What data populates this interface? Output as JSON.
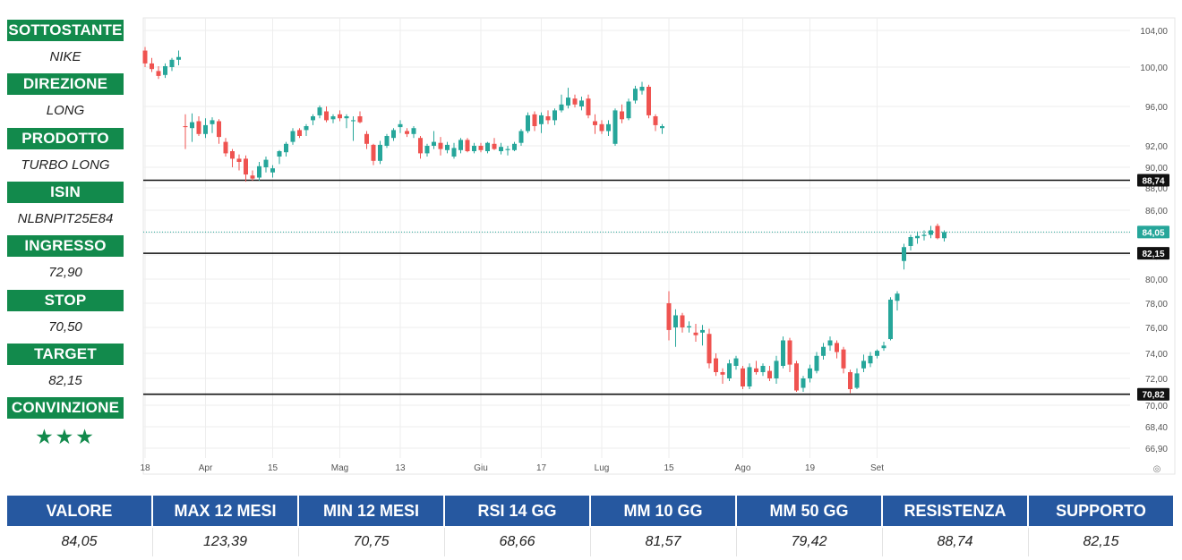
{
  "left_panel": {
    "items": [
      {
        "label": "SOTTOSTANTE",
        "value": "NIKE"
      },
      {
        "label": "DIREZIONE",
        "value": "LONG"
      },
      {
        "label": "PRODOTTO",
        "value": "TURBO LONG"
      },
      {
        "label": "ISIN",
        "value": "NLBNPIT25E84"
      },
      {
        "label": "INGRESSO",
        "value": "72,90"
      },
      {
        "label": "STOP",
        "value": "70,50"
      },
      {
        "label": "TARGET",
        "value": "82,15"
      },
      {
        "label": "CONVINZIONE",
        "value": "★★★"
      }
    ]
  },
  "stats": {
    "headers": [
      "VALORE",
      "MAX 12 MESI",
      "MIN 12 MESI",
      "RSI 14 GG",
      "MM 10 GG",
      "MM 50 GG",
      "RESISTENZA",
      "SUPPORTO"
    ],
    "values": [
      "84,05",
      "123,39",
      "70,75",
      "68,66",
      "81,57",
      "79,42",
      "88,74",
      "82,15"
    ]
  },
  "colors": {
    "up": "#26a69a",
    "down": "#ef5350",
    "green_label": "#128a4c",
    "blue_header": "#2658a0",
    "grid": "#eeeeee"
  },
  "chart_data": {
    "type": "candlestick",
    "y_axis_ticks": [
      "104,00",
      "100,00",
      "96,00",
      "92,00",
      "90,00",
      "88,00",
      "86,00",
      "84,00",
      "82,00",
      "80,00",
      "78,00",
      "76,00",
      "74,00",
      "72,00",
      "70,00",
      "68,40",
      "66,90"
    ],
    "y_axis_tick_values": [
      104,
      100,
      96,
      92,
      90,
      88,
      86,
      84,
      82,
      80,
      78,
      76,
      74,
      72,
      70,
      68.4,
      66.9
    ],
    "x_axis_labels": [
      "18",
      "Apr",
      "15",
      "Mag",
      "13",
      "Giu",
      "17",
      "Lug",
      "15",
      "Ago",
      "19",
      "Set"
    ],
    "x_axis_label_index": [
      0,
      9,
      19,
      29,
      38,
      50,
      59,
      68,
      78,
      89,
      99,
      109
    ],
    "horizontal_levels": [
      {
        "value": 88.74,
        "label": "88,74",
        "style": "solid"
      },
      {
        "value": 82.15,
        "label": "82,15",
        "style": "solid"
      },
      {
        "value": 70.82,
        "label": "70,82",
        "style": "solid"
      }
    ],
    "last_price": {
      "value": 84.05,
      "label": "84,05"
    },
    "candles": [
      [
        101.8,
        102.2,
        100.0,
        100.4
      ],
      [
        100.4,
        101.0,
        99.5,
        99.8
      ],
      [
        99.6,
        100.1,
        98.8,
        99.1
      ],
      [
        99.2,
        100.4,
        98.9,
        100.1
      ],
      [
        100.0,
        101.0,
        99.6,
        100.8
      ],
      [
        100.8,
        101.8,
        100.2,
        101.1
      ],
      [
        94.0,
        95.2,
        91.7,
        93.9
      ],
      [
        93.8,
        95.3,
        92.4,
        94.4
      ],
      [
        94.5,
        95.0,
        93.0,
        93.2
      ],
      [
        93.2,
        94.8,
        92.8,
        94.1
      ],
      [
        94.2,
        94.9,
        93.3,
        94.6
      ],
      [
        94.5,
        94.7,
        92.2,
        92.9
      ],
      [
        92.4,
        92.8,
        91.0,
        91.3
      ],
      [
        91.5,
        91.7,
        90.0,
        90.8
      ],
      [
        90.8,
        91.2,
        89.7,
        90.5
      ],
      [
        90.8,
        91.1,
        88.6,
        89.3
      ],
      [
        89.2,
        89.7,
        88.7,
        88.9
      ],
      [
        89.0,
        90.5,
        88.7,
        90.1
      ],
      [
        90.0,
        91.0,
        89.5,
        90.7
      ],
      [
        89.5,
        90.2,
        89.0,
        89.9
      ],
      [
        91.0,
        91.6,
        90.3,
        91.5
      ],
      [
        91.4,
        92.4,
        91.0,
        92.2
      ],
      [
        92.4,
        93.8,
        92.1,
        93.5
      ],
      [
        93.6,
        93.8,
        92.8,
        93.0
      ],
      [
        93.6,
        94.2,
        93.0,
        94.0
      ],
      [
        94.6,
        95.2,
        94.1,
        95.0
      ],
      [
        95.1,
        96.1,
        94.8,
        95.9
      ],
      [
        95.5,
        96.0,
        94.4,
        94.6
      ],
      [
        94.7,
        95.2,
        94.3,
        95.0
      ],
      [
        95.2,
        95.6,
        94.5,
        94.8
      ],
      [
        94.8,
        95.2,
        93.8,
        95.0
      ],
      [
        94.5,
        95.0,
        92.5,
        94.6
      ],
      [
        95.0,
        95.5,
        94.3,
        94.4
      ],
      [
        93.2,
        93.5,
        91.7,
        92.2
      ],
      [
        92.1,
        92.2,
        90.2,
        90.6
      ],
      [
        90.6,
        92.5,
        90.3,
        92.1
      ],
      [
        92.0,
        93.2,
        91.8,
        93.0
      ],
      [
        92.8,
        93.8,
        92.5,
        93.6
      ],
      [
        93.9,
        94.6,
        93.3,
        94.2
      ],
      [
        93.5,
        93.8,
        92.9,
        93.2
      ],
      [
        93.2,
        94.0,
        92.8,
        93.8
      ],
      [
        92.8,
        93.0,
        90.8,
        91.3
      ],
      [
        91.3,
        92.2,
        91.0,
        92.0
      ],
      [
        92.0,
        93.5,
        91.7,
        92.4
      ],
      [
        92.3,
        92.9,
        91.1,
        91.7
      ],
      [
        91.6,
        92.4,
        91.3,
        92.1
      ],
      [
        91.0,
        92.3,
        90.8,
        91.8
      ],
      [
        91.6,
        92.8,
        91.3,
        92.6
      ],
      [
        92.6,
        92.8,
        91.4,
        91.5
      ],
      [
        91.5,
        92.3,
        91.3,
        92.0
      ],
      [
        92.0,
        92.3,
        91.4,
        91.6
      ],
      [
        91.5,
        92.4,
        91.3,
        92.3
      ],
      [
        92.2,
        92.8,
        91.6,
        91.7
      ],
      [
        91.5,
        92.3,
        91.2,
        91.9
      ],
      [
        91.6,
        92.0,
        91.1,
        91.7
      ],
      [
        91.6,
        92.4,
        91.5,
        92.2
      ],
      [
        92.3,
        93.7,
        92.0,
        93.5
      ],
      [
        93.5,
        95.4,
        93.3,
        95.1
      ],
      [
        95.2,
        95.5,
        93.5,
        94.0
      ],
      [
        94.2,
        95.4,
        93.3,
        95.1
      ],
      [
        95.0,
        95.6,
        94.2,
        94.6
      ],
      [
        94.6,
        95.8,
        94.1,
        95.6
      ],
      [
        95.6,
        97.2,
        95.4,
        96.2
      ],
      [
        96.1,
        97.9,
        95.8,
        96.9
      ],
      [
        96.8,
        97.2,
        95.9,
        96.2
      ],
      [
        96.0,
        97.0,
        95.6,
        96.6
      ],
      [
        96.8,
        97.2,
        94.8,
        95.1
      ],
      [
        94.5,
        95.2,
        93.2,
        94.1
      ],
      [
        94.2,
        94.6,
        93.2,
        93.5
      ],
      [
        93.5,
        94.6,
        93.0,
        94.2
      ],
      [
        92.2,
        95.8,
        92.0,
        95.6
      ],
      [
        95.5,
        96.2,
        94.3,
        94.7
      ],
      [
        94.8,
        96.8,
        94.6,
        96.5
      ],
      [
        96.6,
        98.1,
        96.3,
        97.8
      ],
      [
        97.6,
        98.5,
        97.2,
        98.0
      ],
      [
        98.0,
        98.2,
        94.8,
        95.1
      ],
      [
        95.0,
        95.2,
        93.5,
        94.1
      ],
      [
        93.8,
        94.2,
        93.2,
        94.0
      ],
      [
        78.0,
        79.0,
        75.0,
        75.8
      ],
      [
        76.0,
        77.5,
        74.5,
        77.0
      ],
      [
        77.0,
        77.2,
        75.6,
        76.0
      ],
      [
        76.0,
        76.5,
        75.6,
        76.1
      ],
      [
        75.6,
        76.3,
        74.9,
        75.4
      ],
      [
        75.6,
        76.2,
        74.6,
        75.8
      ],
      [
        75.5,
        75.9,
        72.8,
        73.2
      ],
      [
        73.6,
        74.0,
        72.2,
        72.5
      ],
      [
        72.5,
        72.8,
        71.6,
        72.3
      ],
      [
        72.0,
        73.5,
        71.8,
        73.2
      ],
      [
        73.0,
        73.8,
        72.7,
        73.6
      ],
      [
        72.8,
        73.0,
        71.2,
        71.4
      ],
      [
        71.4,
        73.2,
        71.2,
        72.9
      ],
      [
        72.8,
        73.4,
        72.3,
        72.5
      ],
      [
        72.5,
        73.2,
        72.2,
        73.0
      ],
      [
        72.6,
        73.0,
        71.8,
        72.0
      ],
      [
        72.0,
        73.8,
        71.6,
        73.4
      ],
      [
        73.0,
        75.3,
        72.8,
        75.0
      ],
      [
        75.0,
        75.2,
        72.5,
        73.1
      ],
      [
        73.2,
        73.4,
        71.0,
        71.1
      ],
      [
        71.3,
        72.2,
        71.0,
        72.0
      ],
      [
        72.0,
        73.1,
        71.7,
        72.8
      ],
      [
        72.6,
        74.1,
        72.4,
        73.8
      ],
      [
        73.8,
        74.8,
        73.5,
        74.5
      ],
      [
        74.6,
        75.3,
        74.2,
        75.0
      ],
      [
        74.8,
        75.0,
        73.6,
        74.1
      ],
      [
        74.3,
        74.5,
        72.4,
        72.8
      ],
      [
        72.5,
        72.7,
        70.9,
        71.2
      ],
      [
        71.3,
        72.8,
        71.2,
        72.4
      ],
      [
        72.8,
        73.9,
        72.5,
        73.4
      ],
      [
        73.2,
        74.1,
        72.9,
        73.8
      ],
      [
        73.8,
        74.3,
        73.6,
        74.2
      ],
      [
        74.4,
        74.9,
        74.2,
        74.6
      ],
      [
        75.1,
        78.5,
        75.0,
        78.3
      ],
      [
        78.2,
        79.0,
        77.4,
        78.8
      ],
      [
        81.5,
        83.0,
        80.8,
        82.7
      ],
      [
        82.8,
        83.8,
        82.4,
        83.6
      ],
      [
        83.5,
        84.1,
        83.0,
        83.7
      ],
      [
        83.7,
        84.2,
        83.3,
        83.8
      ],
      [
        83.8,
        84.6,
        83.5,
        84.2
      ],
      [
        84.6,
        84.8,
        83.4,
        83.5
      ],
      [
        83.5,
        84.2,
        83.2,
        84.05
      ]
    ]
  }
}
